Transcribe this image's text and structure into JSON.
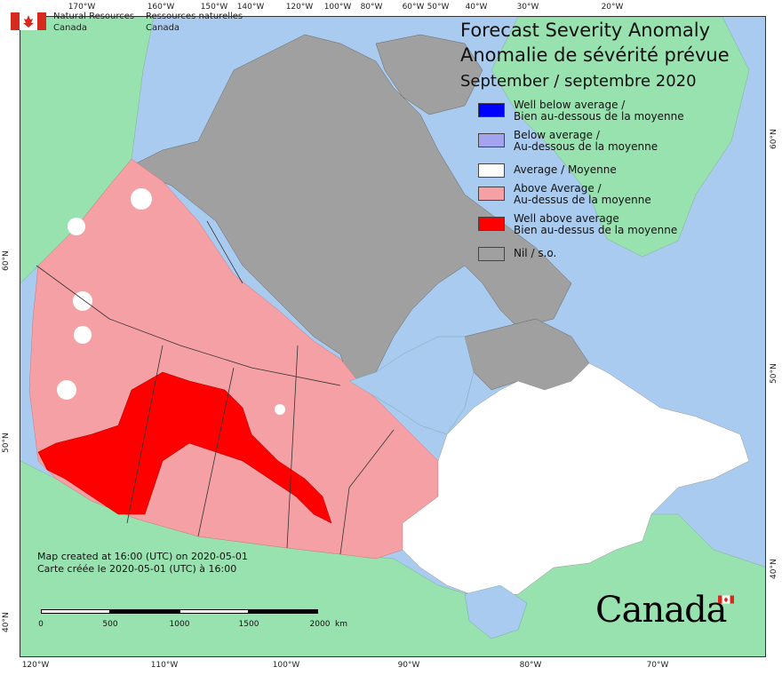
{
  "department": {
    "english_line1": "Natural Resources",
    "english_line2": "Canada",
    "french_line1": "Ressources naturelles",
    "french_line2": "Canada"
  },
  "title": {
    "line1_en": "Forecast Severity Anomaly",
    "line2_fr": "Anomalie de sévérité prévue",
    "period": "September / septembre 2020"
  },
  "legend": [
    {
      "line1": "Well below average /",
      "line2": "Bien au-dessous de la moyenne",
      "color": "#0000ff"
    },
    {
      "line1": "Below average /",
      "line2": "Au-dessous de la moyenne",
      "color": "#a3a3f0"
    },
    {
      "line1": "Average / Moyenne",
      "line2": "",
      "color": "#ffffff"
    },
    {
      "line1": "Above Average /",
      "line2": "Au-dessus de la moyenne",
      "color": "#f5a0a5"
    },
    {
      "line1": "Well above average",
      "line2": "Bien au-dessus de la moyenne",
      "color": "#ff0000"
    },
    {
      "line1": "Nil / s.o.",
      "line2": "",
      "color": "#a0a0a0"
    }
  ],
  "credits": {
    "line_en": "Map created at 16:00 (UTC) on 2020-05-01",
    "line_fr": "Carte créée le 2020-05-01 (UTC) à 16:00"
  },
  "scale": {
    "labels": [
      "0",
      "500",
      "1000",
      "1500",
      "2000"
    ],
    "unit": "km"
  },
  "wordmark": "Canada",
  "graticule": {
    "top": [
      "170°W",
      "160°W",
      "150°W",
      "140°W",
      "120°W",
      "100°W",
      "80°W",
      "60°W",
      "50°W",
      "40°W",
      "30°W",
      "20°W"
    ],
    "bottom": [
      "120°W",
      "110°W",
      "100°W",
      "90°W",
      "80°W",
      "70°W"
    ],
    "left": [
      "60°N",
      "50°N",
      "40°N"
    ],
    "right": [
      "60°N",
      "50°N",
      "40°N"
    ]
  },
  "colors": {
    "water": "#a9cbef",
    "land_other": "#98e2b0",
    "nil": "#a0a0a0",
    "above": "#f5a0a5",
    "well_above": "#ff0000",
    "average": "#ffffff"
  }
}
